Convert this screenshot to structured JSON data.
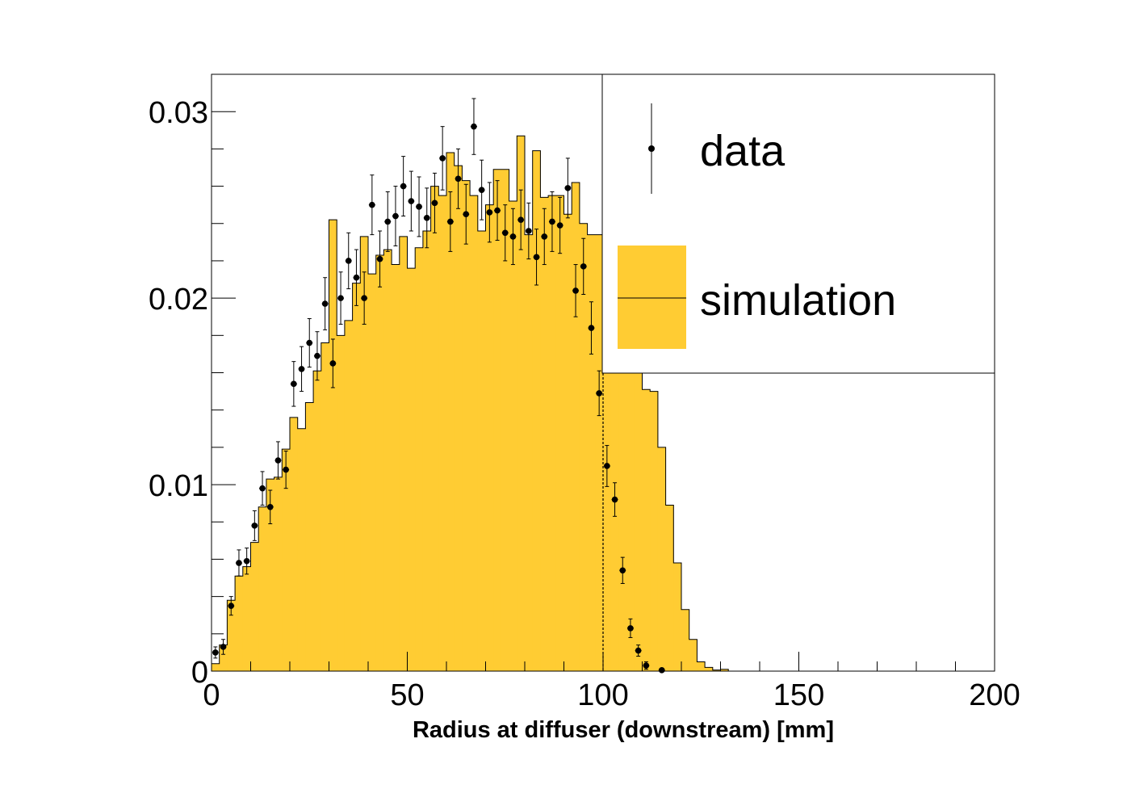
{
  "chart_data": {
    "type": "bar",
    "title": "",
    "xlabel": "Radius at diffuser (downstream) [mm]",
    "ylabel": "",
    "xlim": [
      0,
      200
    ],
    "ylim": [
      0,
      0.032
    ],
    "x_ticks": [
      0,
      50,
      100,
      150,
      200
    ],
    "x_tick_labels": [
      "0",
      "50",
      "100",
      "150",
      "200"
    ],
    "y_ticks": [
      0,
      0.01,
      0.02,
      0.03
    ],
    "y_tick_labels": [
      "0",
      "0.01",
      "0.02",
      "0.03"
    ],
    "grid": false,
    "legend_position": "top-right",
    "cut_line_x": 100,
    "series": [
      {
        "name": "simulation",
        "kind": "histogram",
        "color": "#ffcc33",
        "bin_width": 2,
        "x_start": 0,
        "values": [
          0.0004,
          0.0014,
          0.0038,
          0.0051,
          0.0056,
          0.0069,
          0.0088,
          0.0103,
          0.0104,
          0.0119,
          0.0136,
          0.013,
          0.0144,
          0.0161,
          0.0176,
          0.0242,
          0.018,
          0.0188,
          0.0208,
          0.0233,
          0.0213,
          0.0223,
          0.0226,
          0.0218,
          0.0233,
          0.0216,
          0.0227,
          0.0236,
          0.026,
          0.0255,
          0.0278,
          0.0271,
          0.0263,
          0.0255,
          0.0236,
          0.025,
          0.0269,
          0.0269,
          0.0252,
          0.0287,
          0.0234,
          0.0279,
          0.0254,
          0.0255,
          0.0255,
          0.0245,
          0.0262,
          0.024,
          0.0234,
          0.0234,
          0.0245,
          0.0248,
          0.0218,
          0.0198,
          0.0189,
          0.0151,
          0.015,
          0.012,
          0.0089,
          0.0058,
          0.0033,
          0.0017,
          0.0005,
          0.0002,
          6e-05,
          0.0001,
          0.0,
          0.0,
          0.0,
          0.0,
          0.0,
          0.0,
          0.0,
          0.0,
          0.0,
          0.0,
          0.0,
          0.0,
          0.0,
          0.0,
          0.0,
          0.0,
          0.0,
          0.0,
          0.0,
          0.0,
          0.0,
          0.0,
          0.0,
          0.0,
          0.0,
          0.0,
          0.0,
          0.0,
          0.0,
          0.0,
          0.0,
          0.0,
          0.0,
          0.0
        ]
      },
      {
        "name": "data",
        "kind": "points_with_errors",
        "color": "#000000",
        "x": [
          1,
          3,
          5,
          7,
          9,
          11,
          13,
          15,
          17,
          19,
          21,
          23,
          25,
          27,
          29,
          31,
          33,
          35,
          37,
          39,
          41,
          43,
          45,
          47,
          49,
          51,
          53,
          55,
          57,
          59,
          61,
          63,
          65,
          67,
          69,
          71,
          73,
          75,
          77,
          79,
          81,
          83,
          85,
          87,
          89,
          91,
          93,
          95,
          97,
          99,
          101,
          103,
          105,
          107,
          109,
          111,
          115
        ],
        "y": [
          0.001,
          0.0013,
          0.0035,
          0.0058,
          0.0059,
          0.0078,
          0.0098,
          0.0088,
          0.0113,
          0.0108,
          0.0154,
          0.0162,
          0.0176,
          0.0169,
          0.0197,
          0.0165,
          0.02,
          0.022,
          0.0211,
          0.02,
          0.025,
          0.0221,
          0.0241,
          0.0244,
          0.026,
          0.0252,
          0.0249,
          0.0243,
          0.0251,
          0.0275,
          0.0241,
          0.0264,
          0.0245,
          0.0292,
          0.0258,
          0.0246,
          0.0247,
          0.0235,
          0.0233,
          0.0242,
          0.0236,
          0.0222,
          0.0233,
          0.0241,
          0.0239,
          0.0259,
          0.0204,
          0.0217,
          0.0184,
          0.0149,
          0.011,
          0.0092,
          0.0054,
          0.0023,
          0.0011,
          0.0003,
          5e-05
        ],
        "err": [
          0.0003,
          0.0004,
          0.0005,
          0.0007,
          0.0007,
          0.0008,
          0.0009,
          0.0009,
          0.001,
          0.001,
          0.0012,
          0.0012,
          0.0013,
          0.0013,
          0.0014,
          0.0013,
          0.0014,
          0.0015,
          0.0015,
          0.0014,
          0.0016,
          0.0015,
          0.0016,
          0.0016,
          0.0016,
          0.0016,
          0.0016,
          0.0016,
          0.0016,
          0.0017,
          0.0016,
          0.0016,
          0.0016,
          0.0015,
          0.0016,
          0.0016,
          0.0016,
          0.0015,
          0.0015,
          0.0016,
          0.0015,
          0.0015,
          0.0015,
          0.0016,
          0.0015,
          0.0016,
          0.0014,
          0.0015,
          0.0014,
          0.0012,
          0.0011,
          0.0009,
          0.0007,
          0.0005,
          0.0003,
          0.0002,
          0.0001
        ]
      }
    ]
  }
}
